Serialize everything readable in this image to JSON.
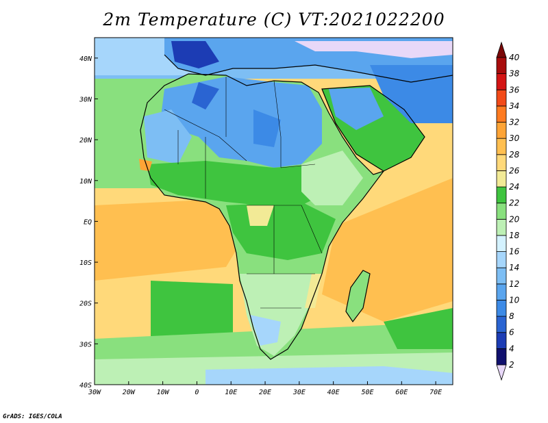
{
  "title": "2m Temperature (C) VT:2021022200",
  "credit": "GrADS: IGES/COLA",
  "chart_data": {
    "type": "heatmap",
    "title": "2m Temperature (C) VT:2021022200",
    "x_ticks": [
      "30W",
      "20W",
      "10W",
      "0",
      "10E",
      "20E",
      "30E",
      "40E",
      "50E",
      "60E",
      "70E"
    ],
    "y_ticks": [
      "40N",
      "30N",
      "20N",
      "10N",
      "EQ",
      "10S",
      "20S",
      "30S",
      "40S"
    ],
    "lon_range": [
      -30,
      75
    ],
    "lat_range": [
      -40,
      45
    ],
    "colorbar": {
      "levels": [
        "2",
        "4",
        "6",
        "8",
        "10",
        "12",
        "14",
        "16",
        "18",
        "20",
        "22",
        "24",
        "26",
        "28",
        "30",
        "32",
        "34",
        "36",
        "38",
        "40"
      ],
      "colors": [
        "#e8d8f8",
        "#10106e",
        "#1c3cb4",
        "#2a64d2",
        "#3c8ae6",
        "#5aa5ee",
        "#7dbef4",
        "#a6d6fb",
        "#d4f2ff",
        "#bdf0b5",
        "#89e07e",
        "#3fc43f",
        "#f2ea96",
        "#ffd97a",
        "#ffbf50",
        "#fea436",
        "#ff7b20",
        "#f24a18",
        "#d41414",
        "#a80c0c",
        "#7a0808"
      ]
    }
  }
}
